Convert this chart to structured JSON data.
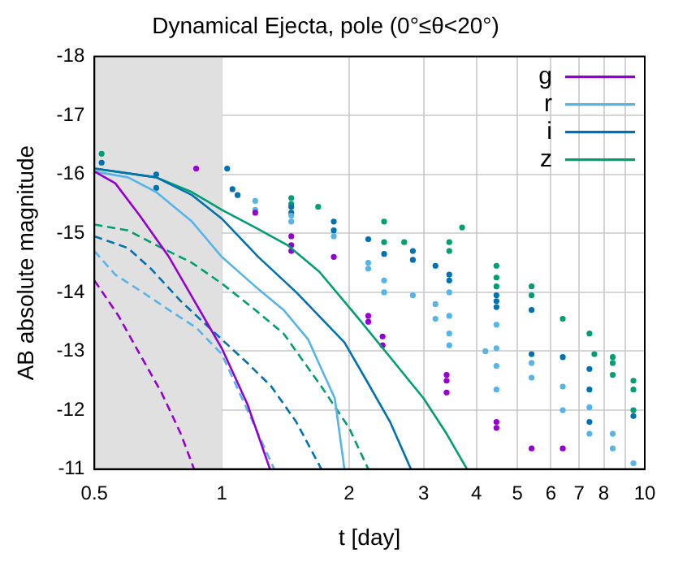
{
  "chart_data": {
    "type": "line",
    "title": "Dynamical Ejecta, pole (0°≤θ<20°)",
    "xlabel": "t [day]",
    "ylabel": "AB absolute magnitude",
    "log": "x",
    "grid": true,
    "legend": "top right",
    "xlim": [
      0.5,
      10
    ],
    "xticks": [
      0.5,
      1,
      2,
      3,
      4,
      5,
      6,
      7,
      8,
      {
        "value": 9,
        "label": null
      },
      10
    ],
    "ylim": [
      -11,
      -18
    ],
    "yticks": [
      -18,
      -17,
      -16,
      -15,
      -14,
      -13,
      -12,
      -11
    ],
    "bands": [
      {
        "axis": "x",
        "from": 0.5,
        "to": 1,
        "color": "#e0e0e0"
      }
    ],
    "series": [
      {
        "name": "g",
        "color": "#9400d3",
        "line_style": "solid",
        "marker": "none",
        "x": [
          0.5,
          0.56,
          0.64,
          0.75,
          0.87,
          1,
          1.15,
          1.3
        ],
        "values": [
          -16.05,
          -15.85,
          -15.3,
          -14.6,
          -13.8,
          -13.05,
          -12.1,
          -11.0
        ]
      },
      {
        "name": "r",
        "color": "#56b4e9",
        "line_style": "solid",
        "marker": "none",
        "x": [
          0.5,
          0.6,
          0.7,
          0.85,
          1,
          1.2,
          1.4,
          1.6,
          1.85,
          1.95
        ],
        "values": [
          -16.05,
          -15.95,
          -15.7,
          -15.2,
          -14.6,
          -14.1,
          -13.7,
          -13.2,
          -12.2,
          -11.0
        ]
      },
      {
        "name": "i",
        "color": "#0072b2",
        "line_style": "solid",
        "marker": "none",
        "x": [
          0.5,
          0.7,
          0.85,
          1,
          1.22,
          1.5,
          1.75,
          1.95,
          2.2,
          2.5,
          2.8
        ],
        "values": [
          -16.1,
          -15.95,
          -15.65,
          -15.25,
          -14.6,
          -14.0,
          -13.5,
          -13.15,
          -12.5,
          -11.8,
          -11.0
        ]
      },
      {
        "name": "z",
        "color": "#009e73",
        "line_style": "solid",
        "marker": "none",
        "x": [
          0.5,
          0.7,
          0.85,
          1,
          1.2,
          1.43,
          1.7,
          2.08,
          2.5,
          3,
          3.4,
          3.8
        ],
        "values": [
          -16.1,
          -15.95,
          -15.7,
          -15.4,
          -15.1,
          -14.8,
          -14.35,
          -13.6,
          -12.9,
          -12.2,
          -11.6,
          -11.0
        ]
      },
      {
        "type": "line",
        "color": "#9400d3",
        "line_style": "dashed",
        "marker": "none",
        "x": [
          0.5,
          0.57,
          0.64,
          0.72,
          0.8,
          0.86
        ],
        "values": [
          -14.2,
          -13.6,
          -12.95,
          -12.3,
          -11.6,
          -11.0
        ]
      },
      {
        "type": "line",
        "color": "#56b4e9",
        "line_style": "dashed",
        "marker": "none",
        "x": [
          0.5,
          0.56,
          0.65,
          0.75,
          0.87,
          1,
          1.15,
          1.33
        ],
        "values": [
          -14.7,
          -14.3,
          -14.0,
          -13.7,
          -13.4,
          -12.95,
          -12.0,
          -11.0
        ]
      },
      {
        "type": "line",
        "color": "#0072b2",
        "line_style": "dashed",
        "marker": "none",
        "x": [
          0.5,
          0.6,
          0.68,
          0.8,
          1,
          1.15,
          1.31,
          1.5,
          1.72
        ],
        "values": [
          -14.95,
          -14.75,
          -14.4,
          -13.85,
          -13.2,
          -12.8,
          -12.4,
          -11.8,
          -11.0
        ]
      },
      {
        "type": "line",
        "color": "#009e73",
        "line_style": "dashed",
        "marker": "none",
        "x": [
          0.5,
          0.6,
          0.7,
          0.85,
          1,
          1.2,
          1.4,
          1.72,
          2,
          2.22
        ],
        "values": [
          -15.15,
          -15.05,
          -14.8,
          -14.5,
          -14.15,
          -13.7,
          -13.3,
          -12.4,
          -11.7,
          -11.0
        ]
      },
      {
        "type": "scatter",
        "color": "#9400d3",
        "marker": "circle",
        "x": [
          0.87,
          1.2,
          1.46,
          1.46,
          1.46,
          1.84,
          2.22,
          2.22,
          2.4,
          2.4,
          3.4,
          3.4,
          3.4,
          4.46,
          4.46,
          5.4,
          6.4
        ],
        "values": [
          -16.1,
          -15.35,
          -14.95,
          -14.8,
          -14.7,
          -14.6,
          -13.6,
          -13.5,
          -13.25,
          -13.1,
          -12.6,
          -12.5,
          -12.3,
          -11.8,
          -11.7,
          -11.35,
          -11.35
        ]
      },
      {
        "type": "scatter",
        "color": "#56b4e9",
        "marker": "circle",
        "x": [
          1.2,
          1.2,
          1.46,
          1.46,
          1.84,
          2.22,
          2.22,
          2.42,
          2.42,
          2.83,
          3.2,
          3.2,
          3.45,
          3.45,
          3.45,
          3.45,
          4.2,
          4.46,
          4.46,
          4.46,
          4.46,
          5.4,
          5.4,
          6.4,
          6.4,
          7.4,
          7.4,
          8.4,
          8.4,
          9.4
        ],
        "values": [
          -15.55,
          -15.4,
          -15.3,
          -15.2,
          -14.95,
          -14.5,
          -14.4,
          -14.2,
          -14.0,
          -13.95,
          -13.8,
          -13.55,
          -14.0,
          -13.6,
          -13.3,
          -13.1,
          -13.0,
          -13.45,
          -13.05,
          -12.75,
          -12.35,
          -12.8,
          -12.55,
          -12.4,
          -12.0,
          -12.05,
          -11.6,
          -11.6,
          -11.35,
          -11.1
        ]
      },
      {
        "type": "scatter",
        "color": "#0072b2",
        "marker": "circle",
        "x": [
          0.52,
          0.7,
          0.7,
          1.03,
          1.06,
          1.09,
          1.46,
          1.46,
          1.84,
          1.84,
          2.22,
          2.42,
          2.83,
          2.83,
          3.2,
          3.45,
          3.45,
          4.46,
          4.46,
          4.46,
          5.4,
          5.4,
          6.4,
          7.4,
          7.4,
          7.4,
          9.4
        ],
        "values": [
          -16.2,
          -16.0,
          -15.77,
          -16.1,
          -15.75,
          -15.65,
          -15.45,
          -15.35,
          -15.2,
          -15.05,
          -14.9,
          -14.65,
          -14.7,
          -14.55,
          -14.45,
          -14.3,
          -14.2,
          -13.95,
          -13.85,
          -13.75,
          -13.7,
          -12.95,
          -12.9,
          -12.7,
          -12.35,
          -11.8,
          -11.9
        ]
      },
      {
        "type": "scatter",
        "color": "#009e73",
        "marker": "circle",
        "x": [
          0.52,
          1.46,
          1.46,
          1.69,
          2.42,
          2.42,
          2.7,
          3.45,
          3.45,
          3.7,
          4.46,
          4.46,
          4.46,
          5.4,
          5.4,
          6.4,
          7.4,
          7.6,
          8.4,
          8.4,
          8.4,
          9.4,
          9.4,
          9.4
        ],
        "values": [
          -16.35,
          -15.6,
          -15.5,
          -15.45,
          -15.2,
          -14.85,
          -14.85,
          -14.85,
          -14.7,
          -15.1,
          -14.45,
          -14.25,
          -14.1,
          -14.1,
          -13.95,
          -13.55,
          -13.3,
          -12.95,
          -12.9,
          -12.8,
          -12.6,
          -12.5,
          -12.35,
          -12.0
        ]
      }
    ]
  }
}
